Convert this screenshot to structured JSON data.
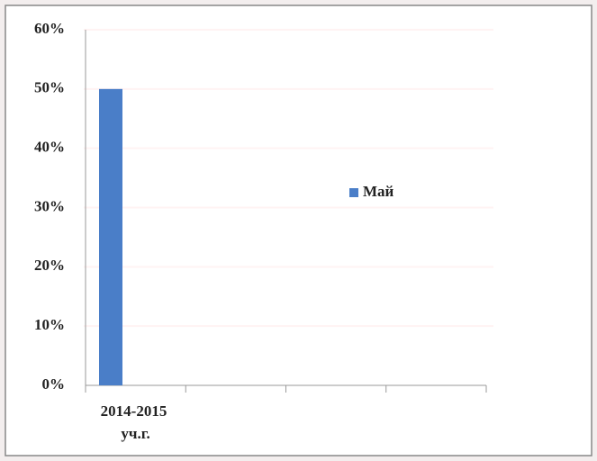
{
  "chart_data": {
    "type": "bar",
    "categories": [
      "2014-2015 уч.г.",
      null,
      null,
      null
    ],
    "series": [
      {
        "name": "Май",
        "color": "#4a7ec8",
        "values": [
          50,
          null,
          null,
          null
        ]
      }
    ],
    "ylim": [
      0,
      60
    ],
    "yticks": [
      {
        "value": 0,
        "label": "0%"
      },
      {
        "value": 10,
        "label": "10%"
      },
      {
        "value": 20,
        "label": "20%"
      },
      {
        "value": 30,
        "label": "30%"
      },
      {
        "value": 40,
        "label": "40%"
      },
      {
        "value": 50,
        "label": "50%"
      },
      {
        "value": 60,
        "label": "60%"
      }
    ],
    "grid": true,
    "legend": "right"
  }
}
